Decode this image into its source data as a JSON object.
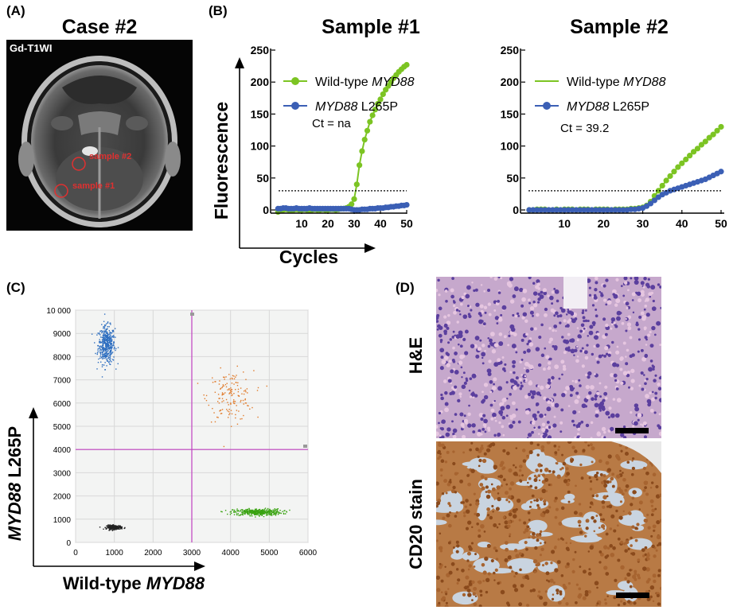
{
  "panels": {
    "a": {
      "label": "(A)",
      "title": "Case #2",
      "image_label": "Gd-T1WI",
      "markers": [
        "sample #2",
        "sample #1"
      ]
    },
    "b": {
      "label": "(B)"
    },
    "c": {
      "label": "(C)"
    },
    "d": {
      "label": "(D)",
      "top_label": "H&E",
      "bottom_label": "CD20 stain"
    }
  },
  "chart_data": [
    {
      "type": "line",
      "title": "Sample #1",
      "xlabel": "Cycles",
      "ylabel": "Fluorescence",
      "xlim": [
        0,
        50
      ],
      "ylim": [
        0,
        250
      ],
      "xticks": [
        10,
        20,
        30,
        40,
        50
      ],
      "yticks": [
        0,
        50,
        100,
        150,
        200,
        250
      ],
      "threshold": 30,
      "legend_position": "top-left",
      "annotation": "Ct = na",
      "series": [
        {
          "name": "Wild-type MYD88",
          "name_italic": "MYD88",
          "name_pre": "Wild-type ",
          "name_post": "",
          "color": "#7cc423",
          "marker": "circle",
          "x": [
            1,
            2,
            3,
            4,
            5,
            6,
            7,
            8,
            9,
            10,
            11,
            12,
            13,
            14,
            15,
            16,
            17,
            18,
            19,
            20,
            21,
            22,
            23,
            24,
            25,
            26,
            27,
            28,
            29,
            30,
            31,
            32,
            33,
            34,
            35,
            36,
            37,
            38,
            39,
            40,
            41,
            42,
            43,
            44,
            45,
            46,
            47,
            48,
            49,
            50
          ],
          "y": [
            -3,
            -1,
            0,
            1,
            0,
            -1,
            0,
            1,
            0,
            0,
            1,
            0,
            -1,
            0,
            1,
            0,
            0,
            1,
            0,
            0,
            1,
            1,
            0,
            1,
            2,
            2,
            3,
            5,
            9,
            17,
            40,
            70,
            92,
            110,
            124,
            138,
            148,
            157,
            166,
            173,
            181,
            188,
            194,
            200,
            206,
            211,
            216,
            220,
            224,
            227
          ]
        },
        {
          "name": "MYD88 L265P",
          "name_italic": "MYD88",
          "name_pre": "",
          "name_post": " L265P",
          "color": "#3b5fb5",
          "marker": "circle",
          "x": [
            1,
            2,
            3,
            4,
            5,
            6,
            7,
            8,
            9,
            10,
            11,
            12,
            13,
            14,
            15,
            16,
            17,
            18,
            19,
            20,
            21,
            22,
            23,
            24,
            25,
            26,
            27,
            28,
            29,
            30,
            31,
            32,
            33,
            34,
            35,
            36,
            37,
            38,
            39,
            40,
            41,
            42,
            43,
            44,
            45,
            46,
            47,
            48,
            49,
            50
          ],
          "y": [
            2,
            2,
            3,
            3,
            2,
            2,
            2,
            3,
            2,
            2,
            2,
            2,
            3,
            2,
            2,
            2,
            2,
            2,
            2,
            2,
            2,
            2,
            2,
            2,
            2,
            2,
            2,
            2,
            1,
            0,
            0,
            0,
            1,
            1,
            1,
            2,
            2,
            2,
            3,
            3,
            3,
            4,
            4,
            5,
            5,
            6,
            6,
            7,
            7,
            8
          ]
        }
      ]
    },
    {
      "type": "line",
      "title": "Sample #2",
      "xlim": [
        0,
        50
      ],
      "ylim": [
        0,
        250
      ],
      "xticks": [
        10,
        20,
        30,
        40,
        50
      ],
      "yticks": [
        0,
        50,
        100,
        150,
        200,
        250
      ],
      "threshold": 30,
      "legend_position": "top-left",
      "annotation": "Ct = 39.2",
      "series": [
        {
          "name": "Wild-type MYD88",
          "name_italic": "MYD88",
          "name_pre": "Wild-type ",
          "name_post": "",
          "color": "#7cc423",
          "marker": "circle",
          "x": [
            1,
            2,
            3,
            4,
            5,
            6,
            7,
            8,
            9,
            10,
            11,
            12,
            13,
            14,
            15,
            16,
            17,
            18,
            19,
            20,
            21,
            22,
            23,
            24,
            25,
            26,
            27,
            28,
            29,
            30,
            31,
            32,
            33,
            34,
            35,
            36,
            37,
            38,
            39,
            40,
            41,
            42,
            43,
            44,
            45,
            46,
            47,
            48,
            49,
            50
          ],
          "y": [
            0,
            0,
            1,
            1,
            1,
            0,
            0,
            1,
            0,
            1,
            1,
            1,
            0,
            1,
            1,
            1,
            0,
            1,
            1,
            1,
            1,
            0,
            1,
            1,
            1,
            1,
            2,
            2,
            3,
            4,
            7,
            13,
            22,
            30,
            38,
            46,
            53,
            60,
            67,
            73,
            79,
            85,
            91,
            96,
            102,
            107,
            113,
            118,
            124,
            130
          ]
        },
        {
          "name": "MYD88 L265P",
          "name_italic": "MYD88",
          "name_pre": "",
          "name_post": " L265P",
          "color": "#3b5fb5",
          "marker": "circle",
          "x": [
            1,
            2,
            3,
            4,
            5,
            6,
            7,
            8,
            9,
            10,
            11,
            12,
            13,
            14,
            15,
            16,
            17,
            18,
            19,
            20,
            21,
            22,
            23,
            24,
            25,
            26,
            27,
            28,
            29,
            30,
            31,
            32,
            33,
            34,
            35,
            36,
            37,
            38,
            39,
            40,
            41,
            42,
            43,
            44,
            45,
            46,
            47,
            48,
            49,
            50
          ],
          "y": [
            0,
            0,
            0,
            0,
            0,
            0,
            0,
            0,
            0,
            0,
            0,
            0,
            0,
            0,
            0,
            0,
            0,
            0,
            0,
            0,
            0,
            0,
            0,
            0,
            0,
            0,
            1,
            1,
            2,
            3,
            6,
            10,
            15,
            20,
            24,
            27,
            30,
            32,
            34,
            36,
            38,
            40,
            42,
            44,
            46,
            48,
            51,
            54,
            57,
            60
          ]
        }
      ]
    },
    {
      "type": "scatter",
      "xlabel": "Wild-type MYD88",
      "ylabel": "MYD88 L265P",
      "xlim": [
        0,
        6000
      ],
      "ylim": [
        0,
        10000
      ],
      "xticks": [
        0,
        1000,
        2000,
        3000,
        4000,
        5000,
        6000
      ],
      "yticks": [
        0,
        1000,
        2000,
        3000,
        4000,
        5000,
        6000,
        7000,
        8000,
        9000,
        10000
      ],
      "ytick_labels": [
        "0",
        "1000",
        "2000",
        "3000",
        "4000",
        "5000",
        "6000",
        "7000",
        "8000",
        "9000",
        "10 000"
      ],
      "grid": true,
      "threshold_x": 3000,
      "threshold_y": 4000,
      "clusters": [
        {
          "color": "#2f6fc0",
          "center": [
            800,
            8500
          ],
          "spread": [
            120,
            450
          ],
          "count": 450
        },
        {
          "color": "#e07a2a",
          "center": [
            4000,
            6300
          ],
          "spread": [
            330,
            600
          ],
          "count": 150
        },
        {
          "color": "#3aa312",
          "center": [
            4700,
            1300
          ],
          "spread": [
            350,
            80
          ],
          "count": 400
        },
        {
          "color": "#222222",
          "center": [
            1000,
            650
          ],
          "spread": [
            110,
            50
          ],
          "count": 220
        }
      ]
    }
  ]
}
